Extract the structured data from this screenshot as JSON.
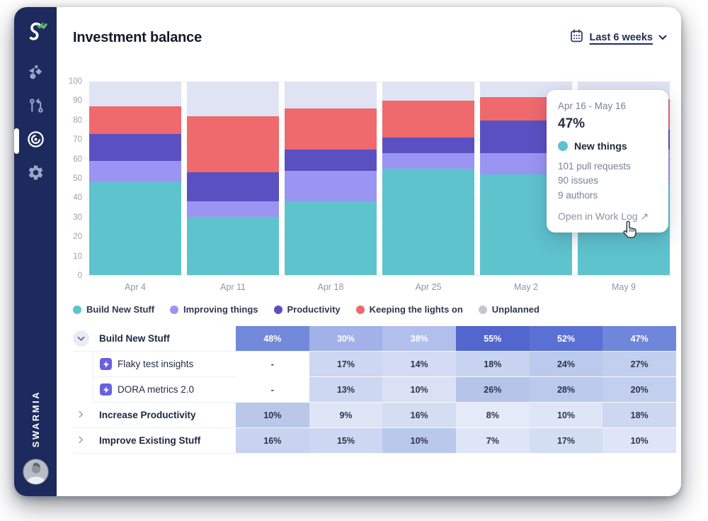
{
  "sidebar": {
    "brand": "SWARMIA",
    "nav": [
      {
        "name": "overview",
        "active": false
      },
      {
        "name": "pull-requests",
        "active": false
      },
      {
        "name": "investment-balance",
        "active": true
      },
      {
        "name": "settings",
        "active": false
      }
    ]
  },
  "header": {
    "title": "Investment balance",
    "range_label": "Last 6 weeks"
  },
  "chart_data": {
    "type": "bar",
    "stacked": true,
    "unit": "%",
    "title": "Investment balance",
    "categories": [
      "Apr 4",
      "Apr 11",
      "Apr 18",
      "Apr 25",
      "May 2",
      "May 9"
    ],
    "series": [
      {
        "name": "Build New Stuff",
        "color": "#5EC3CD",
        "legend_color": "#5EC3CD",
        "values": [
          48,
          30,
          38,
          55,
          52,
          47
        ]
      },
      {
        "name": "Improving things",
        "color": "#9A95F2",
        "legend_color": "#9A95F2",
        "values": [
          11,
          8,
          16,
          8,
          11,
          18
        ]
      },
      {
        "name": "Productivity",
        "color": "#5B50C2",
        "legend_color": "#5B50C2",
        "values": [
          14,
          15,
          11,
          8,
          17,
          10
        ]
      },
      {
        "name": "Keeping the lights on",
        "color": "#EE6A6C",
        "legend_color": "#EE6A6C",
        "values": [
          14,
          29,
          21,
          19,
          12,
          16
        ]
      },
      {
        "name": "Unplanned",
        "color": "#DFE3F3",
        "legend_color": "#C3C6CE",
        "values": [
          13,
          18,
          14,
          10,
          8,
          9
        ]
      }
    ],
    "ylim": [
      0,
      100
    ],
    "yticks": [
      0,
      10,
      20,
      30,
      40,
      50,
      60,
      70,
      80,
      90,
      100
    ],
    "grid": true,
    "legend_position": "bottom"
  },
  "tooltip": {
    "date_range": "Apr 16 - May 16",
    "value": "47%",
    "series": "New things",
    "series_color": "#5EC3CD",
    "stats": [
      "101 pull requests",
      "90 issues",
      "9 authors"
    ],
    "link_label": "Open in Work Log",
    "link_arrow": "↗"
  },
  "table": {
    "rows": [
      {
        "label": "Build New Stuff",
        "level": "group",
        "state": "expanded",
        "cells": [
          {
            "v": "48%",
            "bg": "#7289DC",
            "fg": "#FFFFFF"
          },
          {
            "v": "30%",
            "bg": "#A2B1E8",
            "fg": "#FFFFFF"
          },
          {
            "v": "38%",
            "bg": "#B1BFEC",
            "fg": "#FFFFFF"
          },
          {
            "v": "55%",
            "bg": "#5266CE",
            "fg": "#FFFFFF"
          },
          {
            "v": "52%",
            "bg": "#5B70D4",
            "fg": "#FFFFFF"
          },
          {
            "v": "47%",
            "bg": "#6F86DA",
            "fg": "#FFFFFF"
          }
        ]
      },
      {
        "label": "Flaky test insights",
        "level": "sub",
        "icon": "bolt",
        "cells": [
          {
            "v": "-",
            "bg": "#FFFFFF",
            "fg": "#2B3448"
          },
          {
            "v": "17%",
            "bg": "#CDD7F1",
            "fg": "#2B3448"
          },
          {
            "v": "14%",
            "bg": "#D3DCF3",
            "fg": "#2B3448"
          },
          {
            "v": "18%",
            "bg": "#C7D3EF",
            "fg": "#2B3448"
          },
          {
            "v": "24%",
            "bg": "#BBCAEC",
            "fg": "#2B3448"
          },
          {
            "v": "27%",
            "bg": "#C3CFEE",
            "fg": "#2B3448"
          }
        ]
      },
      {
        "label": "DORA metrics 2.0",
        "level": "sub",
        "icon": "bolt",
        "cells": [
          {
            "v": "-",
            "bg": "#FFFFFF",
            "fg": "#2B3448"
          },
          {
            "v": "13%",
            "bg": "#CDD7F1",
            "fg": "#2B3448"
          },
          {
            "v": "10%",
            "bg": "#DAE1F4",
            "fg": "#2B3448"
          },
          {
            "v": "26%",
            "bg": "#B5C5EA",
            "fg": "#2B3448"
          },
          {
            "v": "28%",
            "bg": "#BBCAEC",
            "fg": "#2B3448"
          },
          {
            "v": "20%",
            "bg": "#C3CFEE",
            "fg": "#2B3448"
          }
        ]
      },
      {
        "label": "Increase Productivity",
        "level": "group",
        "state": "collapsed",
        "cells": [
          {
            "v": "10%",
            "bg": "#B8C7EA",
            "fg": "#2B3448"
          },
          {
            "v": "9%",
            "bg": "#DEE5F6",
            "fg": "#2B3448"
          },
          {
            "v": "16%",
            "bg": "#D4DEF3",
            "fg": "#2B3448"
          },
          {
            "v": "8%",
            "bg": "#E4EAF8",
            "fg": "#2B3448"
          },
          {
            "v": "10%",
            "bg": "#DEE5F6",
            "fg": "#2B3448"
          },
          {
            "v": "18%",
            "bg": "#CDD7F1",
            "fg": "#2B3448"
          }
        ]
      },
      {
        "label": "Improve Existing Stuff",
        "level": "group",
        "state": "collapsed",
        "cells": [
          {
            "v": "16%",
            "bg": "#C7D3EF",
            "fg": "#2B3448"
          },
          {
            "v": "15%",
            "bg": "#CDD7F1",
            "fg": "#2B3448"
          },
          {
            "v": "10%",
            "bg": "#BAC9EB",
            "fg": "#2B3448"
          },
          {
            "v": "7%",
            "bg": "#DEE5F6",
            "fg": "#2B3448"
          },
          {
            "v": "17%",
            "bg": "#D4DEF3",
            "fg": "#2B3448"
          },
          {
            "v": "10%",
            "bg": "#DEE5F6",
            "fg": "#2B3448"
          }
        ]
      }
    ]
  },
  "colors": {
    "sidebar_bg": "#1D2A5E",
    "sidebar_icon": "#9AA6C8",
    "logo_green": "#4FA95F",
    "grid_line": "#EEF1F7",
    "axis_text": "#9AA1B4",
    "navy_accent": "#1F2C55"
  }
}
